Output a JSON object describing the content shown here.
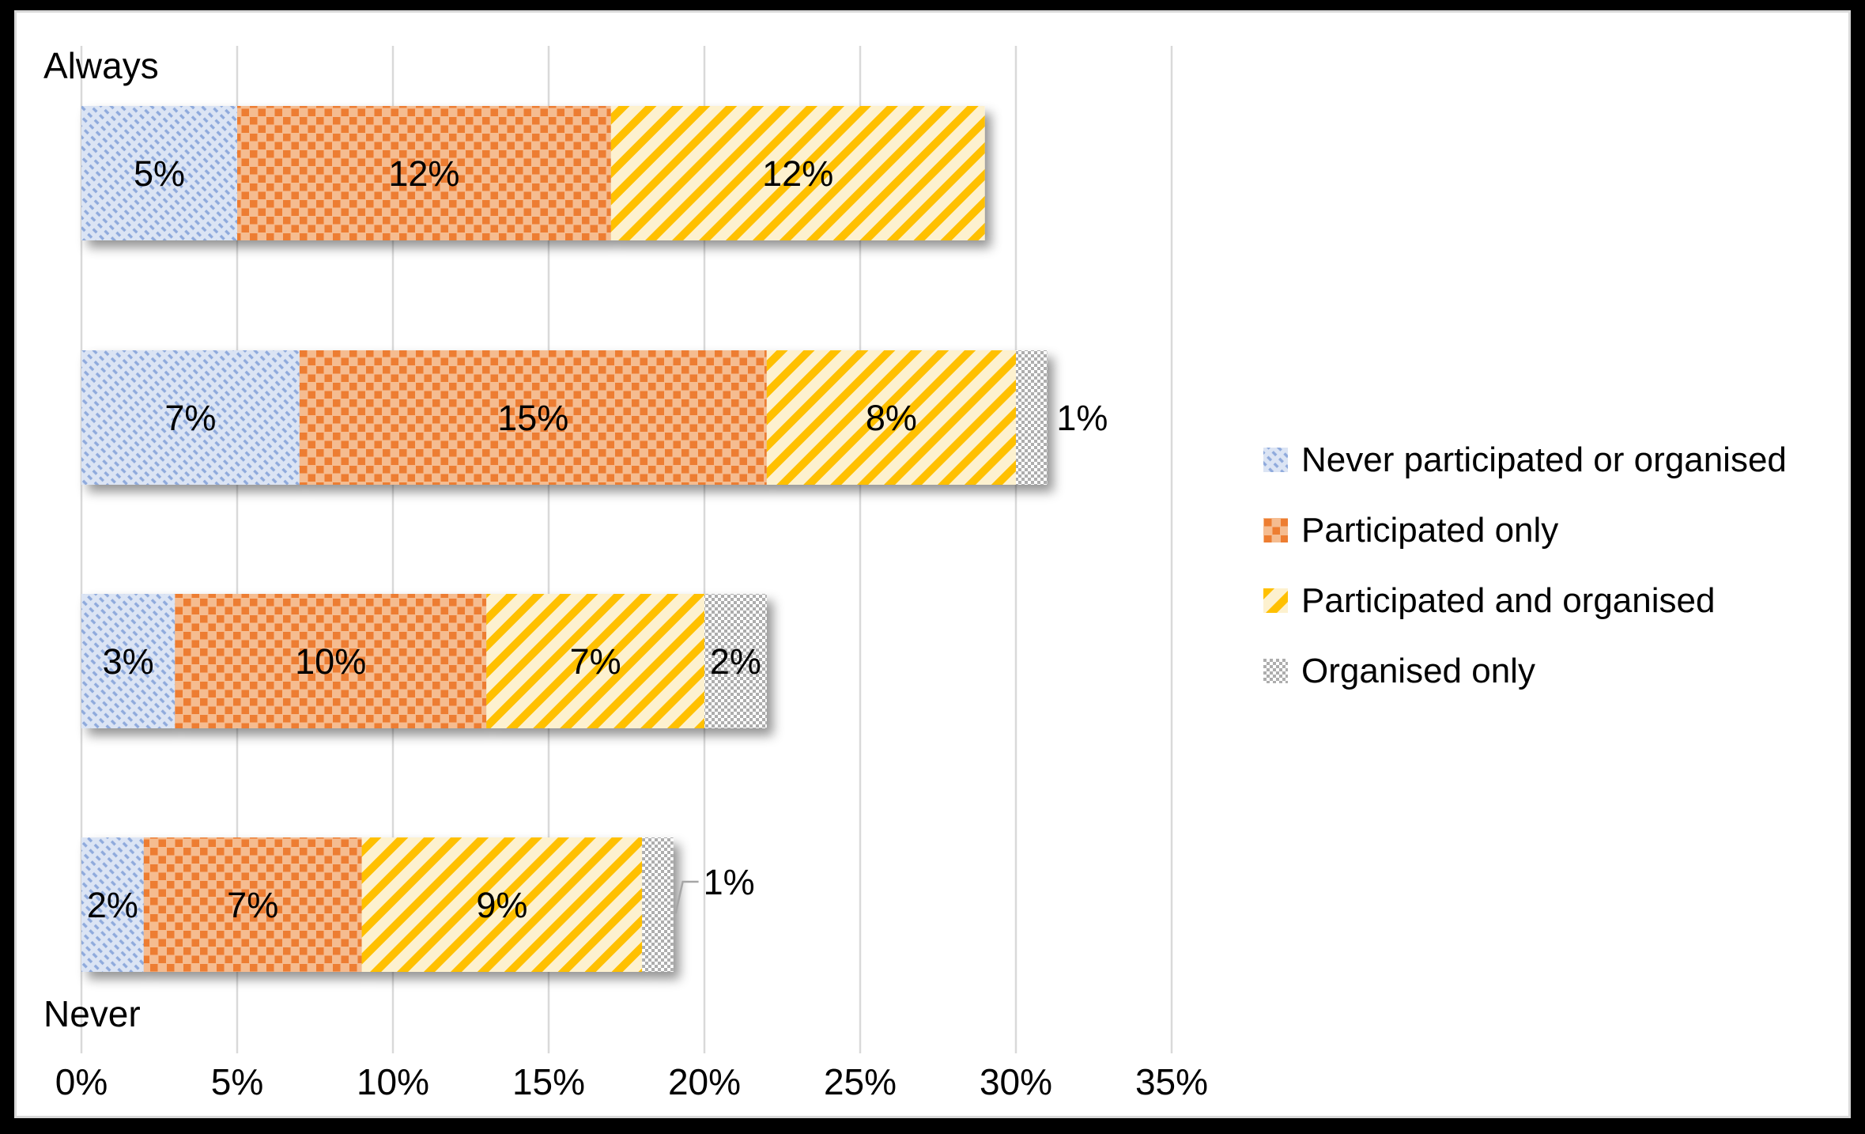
{
  "chart_data": {
    "type": "bar",
    "orientation": "horizontal_stacked",
    "title": "",
    "categories": [
      "Always",
      "",
      "",
      "Never"
    ],
    "category_axis": {
      "top_label": "Always",
      "bottom_label": "Never"
    },
    "series": [
      {
        "name": "Never participated or organised",
        "pattern": "blue-diagonal-dashes",
        "pattern_color": "#8faadc",
        "pattern_bg": "#dbe4f4",
        "values": [
          5,
          7,
          3,
          2
        ]
      },
      {
        "name": "Participated only",
        "pattern": "orange-checker",
        "pattern_color": "#ed7d31",
        "pattern_bg": "#f5bc90",
        "values": [
          12,
          15,
          10,
          7
        ]
      },
      {
        "name": "Participated and organised",
        "pattern": "yellow-diagonal-stripes",
        "pattern_color": "#ffc000",
        "pattern_bg": "#fdf1cf",
        "values": [
          12,
          8,
          7,
          9
        ]
      },
      {
        "name": "Organised only",
        "pattern": "gray-checker",
        "pattern_color": "#adadad",
        "pattern_bg": "#ffffff",
        "values": [
          0,
          1,
          2,
          1
        ]
      }
    ],
    "data_labels": {
      "suffix": "%",
      "shown_for_zero": false
    },
    "outside_labels": [
      {
        "row": 1,
        "series_index": 3,
        "style": "plain"
      },
      {
        "row": 3,
        "series_index": 3,
        "style": "leader"
      }
    ],
    "x_axis": {
      "tick_labels": [
        "0%",
        "5%",
        "10%",
        "15%",
        "20%",
        "25%",
        "30%",
        "35%"
      ],
      "min": 0,
      "max": 35,
      "tick_step": 5,
      "grid": true
    },
    "legend": {
      "position": "right",
      "entries": [
        "Never participated or organised",
        "Participated only",
        "Participated and organised",
        "Organised only"
      ]
    },
    "colors": {
      "gridline": "#d9d9d9",
      "text": "#000000",
      "chart_border": "#d9d9d9",
      "background": "#ffffff",
      "frame": "#000000"
    }
  }
}
